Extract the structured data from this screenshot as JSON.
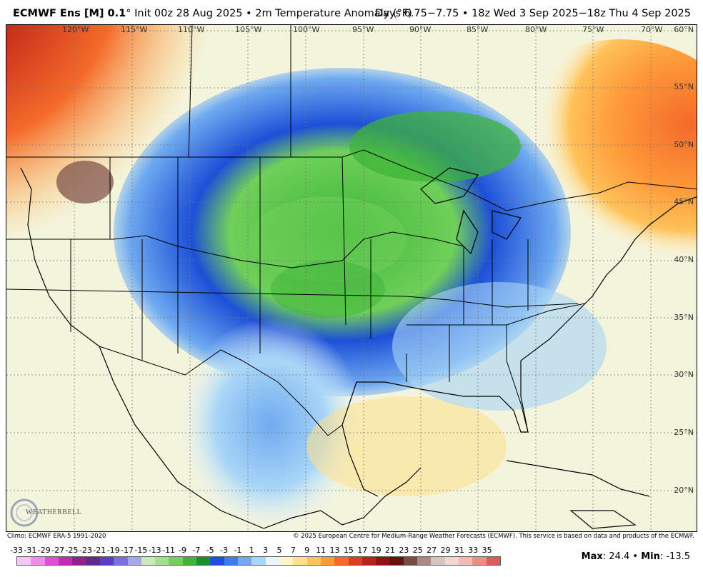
{
  "header": {
    "model": "ECMWF Ens [M] 0.1",
    "init": "° Init 00z 28 Aug 2025 • 2m Temperature Anomaly (°F)",
    "valid": "Days 6.75−7.75 • 18z Wed 3 Sep 2025−18z Thu 4 Sep 2025"
  },
  "map": {
    "lon_labels": [
      "120°W",
      "115°W",
      "110°W",
      "105°W",
      "100°W",
      "95°W",
      "90°W",
      "85°W",
      "80°W",
      "75°W",
      "70°W"
    ],
    "lat_labels": [
      "60°N",
      "55°N",
      "50°N",
      "45°N",
      "40°N",
      "35°N",
      "30°N",
      "25°N",
      "20°N"
    ],
    "regions": {
      "northwest_warm": "warm anomaly",
      "central_cold": "cold anomaly",
      "east_canada_warm": "warm anomaly"
    }
  },
  "logo": {
    "text": "WEATHERBELL"
  },
  "footer": {
    "climo": "Climo: ECMWF ERA-5 1991-2020",
    "copyright": "© 2025 European Centre for Medium-Range Weather Forecasts (ECMWF). This service is based on data and products of the ECMWF."
  },
  "colorbar": {
    "labels": [
      "-33",
      "-31",
      "-29",
      "-27",
      "-25",
      "-23",
      "-21",
      "-19",
      "-17",
      "-15",
      "-13",
      "-11",
      "-9",
      "-7",
      "-5",
      "-3",
      "-1",
      "1",
      "3",
      "5",
      "7",
      "9",
      "11",
      "13",
      "15",
      "17",
      "19",
      "21",
      "23",
      "25",
      "27",
      "29",
      "31",
      "33",
      "35"
    ],
    "colors": [
      "#f7c6f5",
      "#ee8ee8",
      "#dd4fd6",
      "#bf2cb6",
      "#93208f",
      "#5e2a8e",
      "#5b3ec4",
      "#7a70e0",
      "#a8a6f0",
      "#c9e9b9",
      "#a6e08c",
      "#6fd05a",
      "#3eb43a",
      "#1b8f2a",
      "#1d4fd8",
      "#3a7fe8",
      "#6faaf0",
      "#a9d6f7",
      "#e8f6fc",
      "#fff4c9",
      "#ffe08a",
      "#ffc25a",
      "#ff9a3a",
      "#f46a2a",
      "#d9411f",
      "#b3261a",
      "#8a1513",
      "#6a0f0f",
      "#7a4a45",
      "#a88a85",
      "#d6c4c0",
      "#f2d6d0",
      "#f4b9b0",
      "#ec8e86",
      "#d65e5e"
    ]
  },
  "stats": {
    "max_label": "Max",
    "max": "24.4",
    "sep": " • ",
    "min_label": "Min",
    "min": "-13.5"
  }
}
